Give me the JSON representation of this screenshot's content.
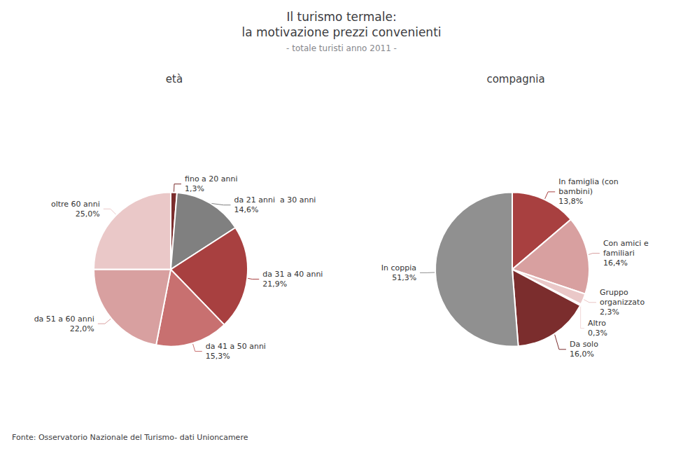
{
  "title": "Il turismo termale:\nla motivazione prezzi convenienti",
  "subtitle": "- totale turisti anno 2011 -",
  "annotations": [
    "Fonte: Osservatorio Nazionale del Turismo- dati Unioncamere"
  ],
  "chart_data": [
    {
      "type": "pie",
      "title": "età",
      "categories": [
        "fino a 20 anni",
        "da 21 anni  a 30 anni",
        "da 31 a 40 anni",
        "da 41 a 50 anni",
        "da 51 a 60 anni",
        "oltre 60 anni"
      ],
      "values": [
        1.3,
        14.6,
        21.9,
        15.3,
        22.0,
        25.0
      ],
      "value_labels": [
        "1,3%",
        "14,6%",
        "21,9%",
        "15,3%",
        "22,0%",
        "25,0%"
      ],
      "colors": [
        "#7B2D2D",
        "#808080",
        "#A84040",
        "#C87070",
        "#D8A0A0",
        "#EAC8C8"
      ],
      "data_labels": true
    },
    {
      "type": "pie",
      "title": "compagnia",
      "categories": [
        "In famiglia (con\nbambini)",
        "Con amici e\nfamiliari",
        "Gruppo\norganizzato",
        "Altro",
        "Da solo",
        "In coppia"
      ],
      "values": [
        13.8,
        16.4,
        2.3,
        0.3,
        16.0,
        51.3
      ],
      "value_labels": [
        "13,8%",
        "16,4%",
        "2,3%",
        "0,3%",
        "16,0%",
        "51,3%"
      ],
      "colors": [
        "#A84040",
        "#D8A0A0",
        "#EAC8C8",
        "#F0D8D8",
        "#7B2D2D",
        "#909090"
      ],
      "data_labels": true
    }
  ]
}
